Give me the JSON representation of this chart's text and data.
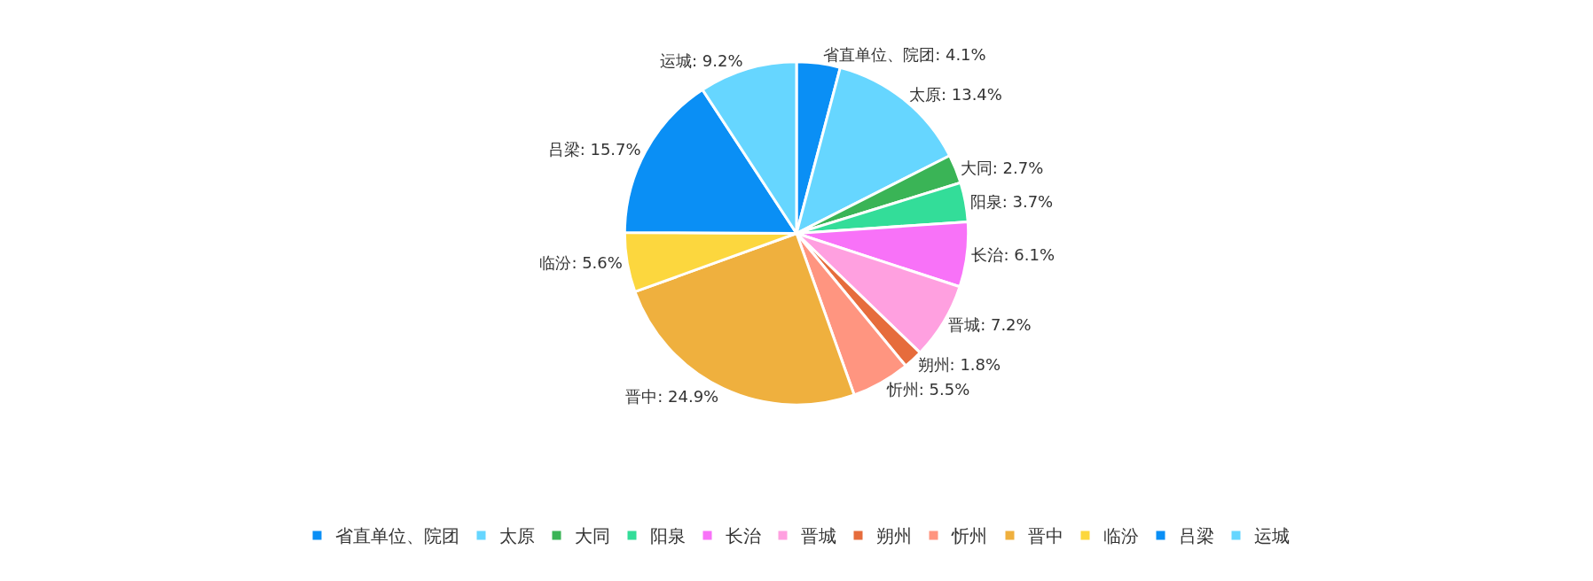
{
  "chart_data": {
    "type": "pie",
    "categories": [
      "省直单位、院团",
      "太原",
      "大同",
      "阳泉",
      "长治",
      "晋城",
      "朔州",
      "忻州",
      "晋中",
      "临汾",
      "吕梁",
      "运城"
    ],
    "values": [
      4.1,
      13.4,
      2.7,
      3.7,
      6.1,
      7.2,
      1.8,
      5.5,
      24.9,
      5.6,
      15.7,
      9.2
    ],
    "value_labels": [
      "省直单位、院团: 4.1%",
      "太原: 13.4%",
      "大同: 2.7%",
      "阳泉: 3.7%",
      "长治: 6.1%",
      "晋城: 7.2%",
      "朔州: 1.8%",
      "忻州: 5.5%",
      "晋中: 24.9%",
      "临汾: 5.6%",
      "吕梁: 15.7%",
      "运城: 9.2%"
    ],
    "colors": [
      "#0a8ff5",
      "#66d6ff",
      "#3ab456",
      "#33dd99",
      "#f872f8",
      "#ffa0e0",
      "#e66c3c",
      "#ff9580",
      "#efb03e",
      "#fcd73e",
      "#0a8ff5",
      "#66d6ff"
    ],
    "legend": "bottom"
  }
}
